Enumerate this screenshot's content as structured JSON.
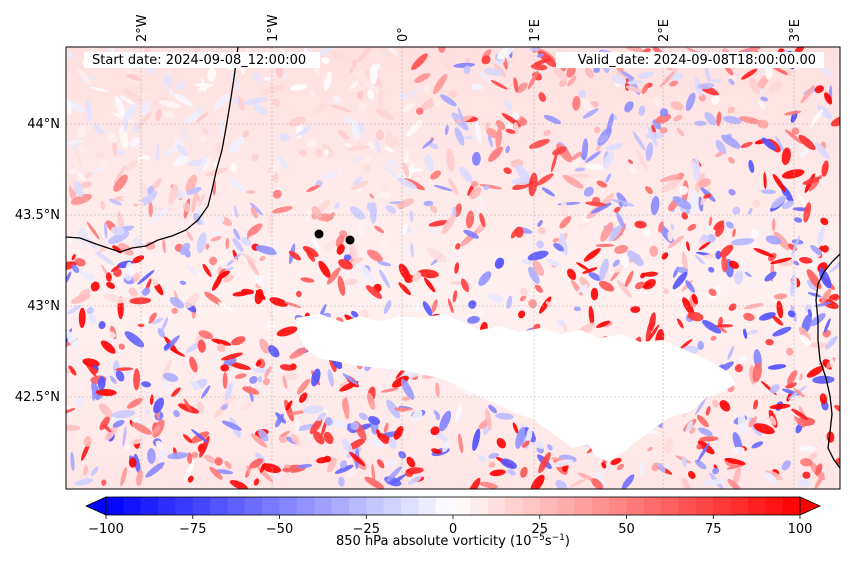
{
  "header": {
    "start_date": "Start date: 2024-09-08_12:00:00",
    "valid_date": "Valid_date: 2024-09-08T18:00:00.00"
  },
  "axes": {
    "lon_ticks": [
      "2°W",
      "1°W",
      "0°",
      "1°E",
      "2°E",
      "3°E"
    ],
    "lat_ticks": [
      "44°N",
      "43.5°N",
      "43°N",
      "42.5°N"
    ]
  },
  "colorbar": {
    "label_main": "850 hPa absolute vorticity (10",
    "label_exp1": "−5",
    "label_mid": "s",
    "label_exp2": "−1",
    "label_end": ")",
    "ticks": [
      "−100",
      "−75",
      "−50",
      "−25",
      "0",
      "25",
      "50",
      "75",
      "100"
    ],
    "min": -100,
    "max": 100,
    "low_color": "#0000ff",
    "mid_color": "#ffffff",
    "high_color": "#ff0000"
  },
  "markers": {
    "color": "#000000",
    "count": 2
  },
  "colors": {
    "coastline": "#000000",
    "gridline": "#b0b0b0"
  }
}
